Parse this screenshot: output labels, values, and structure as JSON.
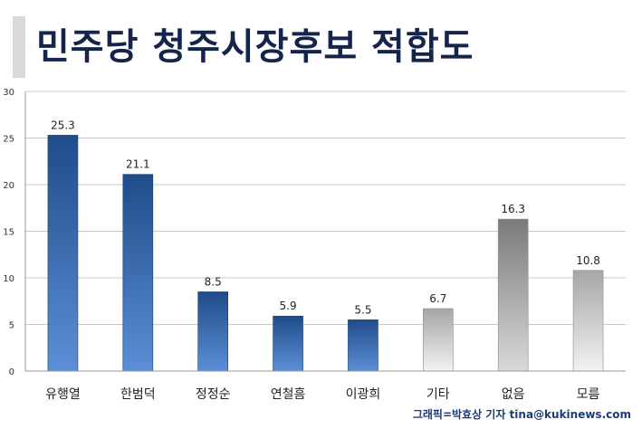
{
  "title": "민주당 청주시장후보 적합도",
  "credit": "그래픽=박효상 기자 tina@kukinews.com",
  "colors": {
    "title": "#14244a",
    "blue_top": "#1f4c8a",
    "blue_bottom": "#5b8fd6",
    "gray_light_top": "#a6a6a6",
    "gray_light_bottom": "#f2f2f2",
    "gray_dark_top": "#7a7a7a",
    "gray_dark_bottom": "#d9d9d9",
    "grid": "#c8c8c8",
    "axis": "#9a9a9a"
  },
  "chart_data": {
    "type": "bar",
    "title": "민주당 청주시장후보 적합도",
    "categories": [
      "유행열",
      "한범덕",
      "정정순",
      "연철흠",
      "이광희",
      "기타",
      "없음",
      "모름"
    ],
    "values": [
      25.3,
      21.1,
      8.5,
      5.9,
      5.5,
      6.7,
      16.3,
      10.8
    ],
    "value_labels": [
      "25.3",
      "21.1",
      "8.5",
      "5.9",
      "5.5",
      "6.7",
      "16.3",
      "10.8"
    ],
    "bar_styles": [
      "blue",
      "blue",
      "blue",
      "blue",
      "blue",
      "gray_light",
      "gray_dark",
      "gray_light"
    ],
    "yticks": [
      "0",
      "5",
      "10",
      "15",
      "20",
      "25",
      "30"
    ],
    "ylim": [
      0,
      30
    ],
    "xlabel": "",
    "ylabel": "",
    "grid": true,
    "legend": "none"
  }
}
